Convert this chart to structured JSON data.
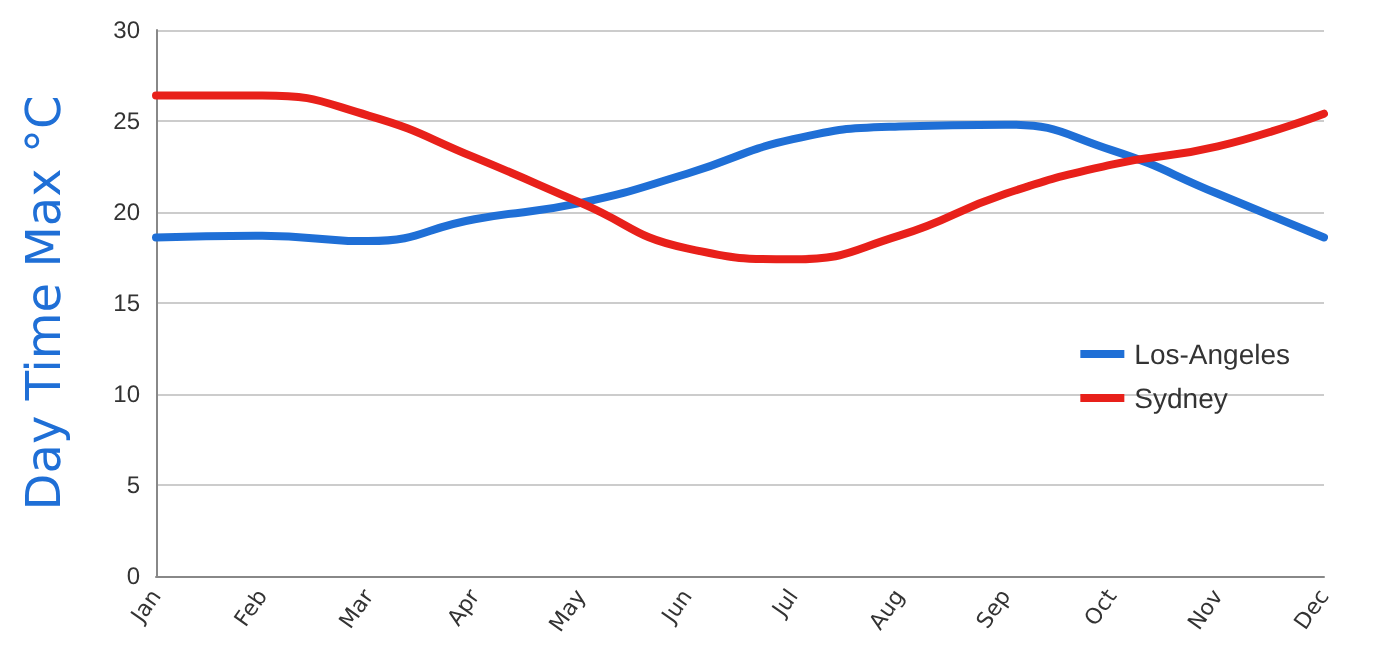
{
  "chart_data": {
    "type": "line",
    "ylabel": "Day Time Max °C",
    "categories": [
      "Jan",
      "Feb",
      "Mar",
      "Apr",
      "May",
      "Jun",
      "Jul",
      "Aug",
      "Sep",
      "Oct",
      "Nov",
      "Dec"
    ],
    "series": [
      {
        "name": "Los-Angeles",
        "color": "#1f6fd6",
        "values": [
          18.6,
          18.7,
          18.4,
          19.6,
          20.5,
          22.1,
          24.0,
          24.7,
          24.8,
          23.4,
          21.0,
          18.6
        ]
      },
      {
        "name": "Sydney",
        "color": "#e8201a",
        "values": [
          26.4,
          26.4,
          25.3,
          23.0,
          20.5,
          18.0,
          17.4,
          18.7,
          21.0,
          22.6,
          23.6,
          25.4
        ]
      }
    ],
    "ylim": [
      0,
      30
    ],
    "yticks": [
      0,
      5,
      10,
      15,
      20,
      25,
      30
    ],
    "grid": "y",
    "legend": "right",
    "marker": "none",
    "line_style": "solid"
  }
}
